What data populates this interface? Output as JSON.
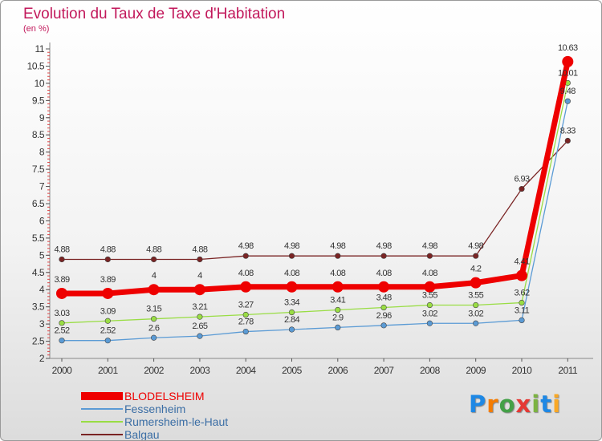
{
  "chart_data": {
    "type": "line",
    "title": "Evolution du Taux de Taxe d'Habitation",
    "subtitle": "(en %)",
    "x": [
      "2000",
      "2001",
      "2002",
      "2003",
      "2004",
      "2005",
      "2006",
      "2007",
      "2008",
      "2009",
      "2010",
      "2011"
    ],
    "y_ticks": [
      "2",
      "2.5",
      "3",
      "3.5",
      "4",
      "4.5",
      "5",
      "5.5",
      "6",
      "6.5",
      "7",
      "7.5",
      "8",
      "8.5",
      "9",
      "9.5",
      "10",
      "10.5",
      "11"
    ],
    "ylim": [
      2,
      11
    ],
    "grid": false,
    "series": [
      {
        "name": "BLODELSHEIM",
        "color": "#ee0000",
        "values": [
          3.89,
          3.89,
          4,
          4,
          4.08,
          4.08,
          4.08,
          4.08,
          4.08,
          4.2,
          4.41,
          10.63
        ],
        "labels": [
          "3.89",
          "3.89",
          "4",
          "4",
          "4.08",
          "4.08",
          "4.08",
          "4.08",
          "4.08",
          "4.2",
          "4.41",
          "10.63"
        ]
      },
      {
        "name": "Fessenheim",
        "color": "#5b9bd5",
        "values": [
          2.52,
          2.52,
          2.6,
          2.65,
          2.78,
          2.84,
          2.9,
          2.96,
          3.02,
          3.02,
          3.11,
          9.48
        ],
        "labels": [
          "2.52",
          "2.52",
          "2.6",
          "2.65",
          "2.78",
          "2.84",
          "2.9",
          "2.96",
          "3.02",
          "3.02",
          "3.11",
          "9.48"
        ]
      },
      {
        "name": "Rumersheim-le-Haut",
        "color": "#99dd44",
        "values": [
          3.03,
          3.09,
          3.15,
          3.21,
          3.27,
          3.34,
          3.41,
          3.48,
          3.55,
          3.55,
          3.62,
          10.01
        ],
        "labels": [
          "3.03",
          "3.09",
          "3.15",
          "3.21",
          "3.27",
          "3.34",
          "3.41",
          "3.48",
          "3.55",
          "3.55",
          "3.62",
          "10.01"
        ]
      },
      {
        "name": "Balgau",
        "color": "#7a2424",
        "values": [
          4.88,
          4.88,
          4.88,
          4.88,
          4.98,
          4.98,
          4.98,
          4.98,
          4.98,
          4.98,
          6.93,
          8.33
        ],
        "labels": [
          "4.88",
          "4.88",
          "4.88",
          "4.88",
          "4.98",
          "4.98",
          "4.98",
          "4.98",
          "4.98",
          "4.98",
          "6.93",
          "8.33"
        ]
      }
    ],
    "legend_position": "bottom-left"
  },
  "logo": {
    "letters": [
      "P",
      "r",
      "o",
      "x",
      "i",
      "t",
      "i"
    ],
    "colors": [
      "#1e88e5",
      "#f57c00",
      "#43a047",
      "#e53935",
      "#7cb342",
      "#1e88e5",
      "#f9a825"
    ]
  }
}
